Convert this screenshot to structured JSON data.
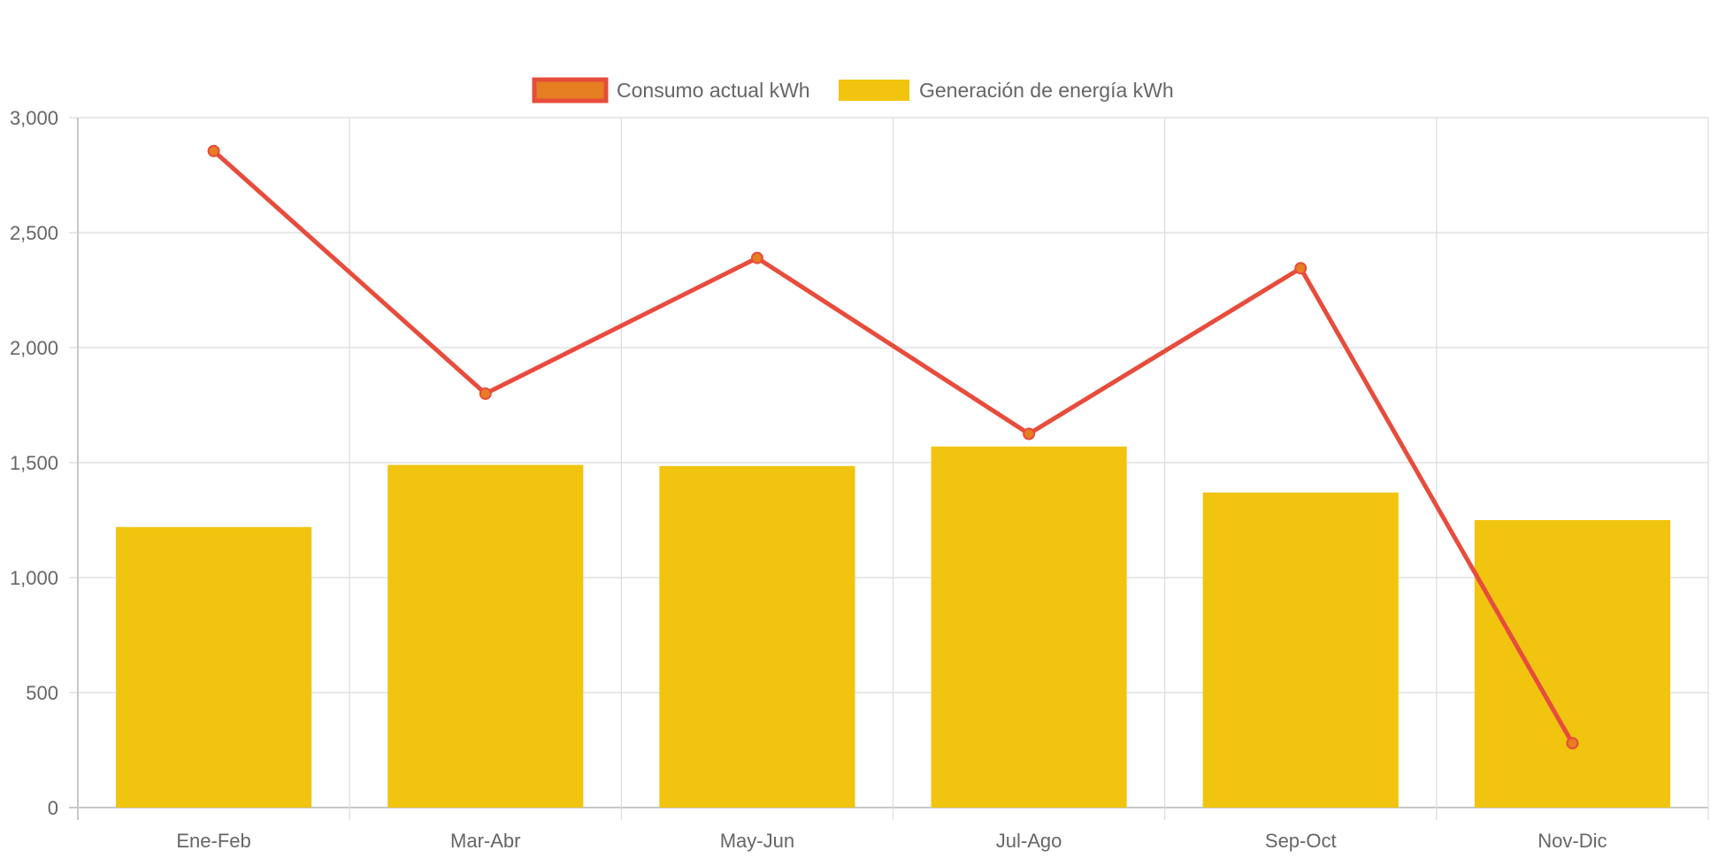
{
  "chart_data": {
    "type": "bar",
    "categories": [
      "Ene-Feb",
      "Mar-Abr",
      "May-Jun",
      "Jul-Ago",
      "Sep-Oct",
      "Nov-Dic"
    ],
    "series": [
      {
        "name": "Generación de energía kWh",
        "render": "bar",
        "color": "#f1c40f",
        "values": [
          1220,
          1490,
          1485,
          1570,
          1370,
          1250
        ]
      },
      {
        "name": "Consumo actual kWh",
        "render": "line",
        "color": "#e74c3c",
        "point_color": "#e67e22",
        "values": [
          2855,
          1800,
          2390,
          1625,
          2345,
          280
        ]
      }
    ],
    "ylim": [
      0,
      3000
    ],
    "yticks": [
      0,
      500,
      1000,
      1500,
      2000,
      2500,
      3000
    ],
    "ytick_labels": [
      "0",
      "500",
      "1,000",
      "1,500",
      "2,000",
      "2,500",
      "3,000"
    ],
    "grid": true,
    "legend": {
      "position": "top-center",
      "order": [
        "Consumo actual kWh",
        "Generación de energía kWh"
      ]
    },
    "title": "",
    "xlabel": "",
    "ylabel": ""
  }
}
